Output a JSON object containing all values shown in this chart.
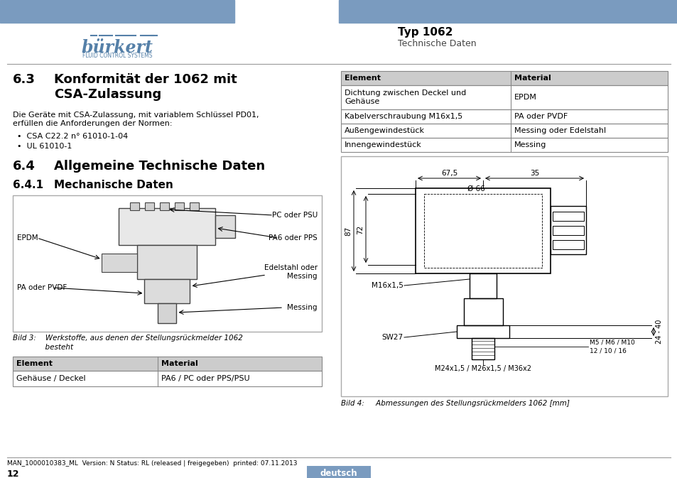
{
  "header_bar_color": "#7a9bbf",
  "burkert_text": "bürkert",
  "burkert_sub": "FLUID CONTROL SYSTEMS",
  "typ_label": "Typ 1062",
  "tech_label": "Technische Daten",
  "section_63_num": "6.3",
  "section_63_title": "Konformität der 1062 mit\nCSA-Zulassung",
  "body_text": "Die Geräte mit CSA-Zulassung, mit variablem Schlüssel PD01,\nerfüllen die Anforderungen der Normen:",
  "bullets": [
    "CSA C22.2 n° 61010-1-04",
    "UL 61010-1"
  ],
  "section_64_num": "6.4",
  "section_64_title": "Allgemeine Technische Daten",
  "section_641_num": "6.4.1",
  "section_641_title": "Mechanische Daten",
  "table1_headers": [
    "Element",
    "Material"
  ],
  "table1_rows": [
    [
      "Gehäuse / Deckel",
      "PA6 / PC oder PPS/PSU"
    ]
  ],
  "table2_headers": [
    "Element",
    "Material"
  ],
  "table2_rows": [
    [
      "Dichtung zwischen Deckel und\nGehäuse",
      "EPDM"
    ],
    [
      "Kabelverschraubung M16x1,5",
      "PA oder PVDF"
    ],
    [
      "Außengewindestück",
      "Messing oder Edelstahl"
    ],
    [
      "Innengewindestück",
      "Messing"
    ]
  ],
  "fig3_caption_line1": "Bild 3:    Werkstoffe, aus denen der Stellungsrückmelder 1062",
  "fig3_caption_line2": "              besteht",
  "fig4_caption": "Bild 4:     Abmessungen des Stellungsrückmelders 1062 [mm]",
  "footer_text": "MAN_1000010383_ML  Version: N Status: RL (released | freigegeben)  printed: 07.11.2013",
  "footer_page": "12",
  "footer_lang": "deutsch",
  "footer_lang_bg": "#7a9bbf",
  "divider_color": "#999999",
  "table_header_bg": "#cccccc",
  "table_border_color": "#888888",
  "fig_box_border": "#aaaaaa",
  "left_labels": [
    "EPDM",
    "PA oder PVDF"
  ],
  "right_labels": [
    "PC oder PSU",
    "PA6 oder PPS",
    "Edelstahl oder\nMessing",
    "Messing"
  ],
  "dim_67_5": "67,5",
  "dim_35": "35",
  "dim_phi66": "Ø 66",
  "dim_87": "87",
  "dim_72": "72",
  "dim_24_40": "24 - 40",
  "dim_m16": "M16x1,5",
  "dim_sw27": "SW27",
  "dim_m5m6m10": "M5 / M6 / M10",
  "dim_121016": "12 / 10 / 16",
  "dim_m24": "M24x1,5 / M26x1,5 / M36x2"
}
